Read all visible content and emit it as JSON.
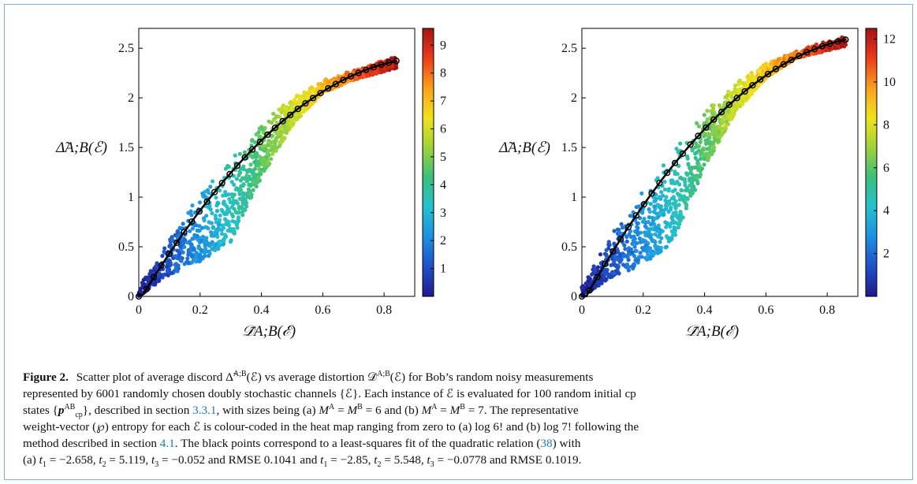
{
  "figure": {
    "label": "Figure 2.",
    "caption_lines": [
      {
        "parts": [
          {
            "t": "Scatter plot of average discord Δ̃",
            "c": ""
          },
          {
            "t": "A;B",
            "c": "sup"
          },
          {
            "t": "(ℰ) vs average distortion 𝒟̃",
            "c": ""
          },
          {
            "t": "A;B",
            "c": "sup"
          },
          {
            "t": "(ℰ) for Bob’s random noisy measurements",
            "c": ""
          }
        ]
      },
      {
        "parts": [
          {
            "t": "represented by 6001 randomly chosen doubly stochastic channels {ℰ}. Each instance of ℰ is evaluated for 100 random initial cp",
            "c": ""
          }
        ]
      },
      {
        "parts": [
          {
            "t": "states {",
            "c": ""
          },
          {
            "t": "p",
            "c": "bi"
          },
          {
            "t": "AB",
            "c": "sup"
          },
          {
            "t": "cp",
            "c": "sub"
          },
          {
            "t": "}, described in section ",
            "c": ""
          },
          {
            "t": "3.3.1",
            "c": "link"
          },
          {
            "t": ", with sizes being (a) ",
            "c": ""
          },
          {
            "t": "M",
            "c": "i"
          },
          {
            "t": "A",
            "c": "sup"
          },
          {
            "t": " = ",
            "c": ""
          },
          {
            "t": "M",
            "c": "i"
          },
          {
            "t": "B",
            "c": "sup"
          },
          {
            "t": " = 6 and (b) ",
            "c": ""
          },
          {
            "t": "M",
            "c": "i"
          },
          {
            "t": "A",
            "c": "sup"
          },
          {
            "t": " = ",
            "c": ""
          },
          {
            "t": "M",
            "c": "i"
          },
          {
            "t": "B",
            "c": "sup"
          },
          {
            "t": " = 7. The representative",
            "c": ""
          }
        ]
      },
      {
        "parts": [
          {
            "t": "weight-vector (℘) entropy for each ℰ is colour-coded in the heat map ranging from zero to (a) log 6! and (b) log 7! following the",
            "c": ""
          }
        ]
      },
      {
        "parts": [
          {
            "t": "method described in section ",
            "c": ""
          },
          {
            "t": "4.1",
            "c": "link"
          },
          {
            "t": ". The black points correspond to a least-squares fit of the quadratic relation (",
            "c": ""
          },
          {
            "t": "38",
            "c": "link"
          },
          {
            "t": ") with",
            "c": ""
          }
        ]
      },
      {
        "parts": [
          {
            "t": "(a) ",
            "c": ""
          },
          {
            "t": "t",
            "c": "i"
          },
          {
            "t": "1",
            "c": "sub"
          },
          {
            "t": " = −2.658, ",
            "c": ""
          },
          {
            "t": "t",
            "c": "i"
          },
          {
            "t": "2",
            "c": "sub"
          },
          {
            "t": " = 5.119, ",
            "c": ""
          },
          {
            "t": "t",
            "c": "i"
          },
          {
            "t": "3",
            "c": "sub"
          },
          {
            "t": " = −0.052 and RMSE 0.1041 and ",
            "c": ""
          },
          {
            "t": "t",
            "c": "i"
          },
          {
            "t": "1",
            "c": "sub"
          },
          {
            "t": " = −2.85, ",
            "c": ""
          },
          {
            "t": "t",
            "c": "i"
          },
          {
            "t": "2",
            "c": "sub"
          },
          {
            "t": " = 5.548, ",
            "c": ""
          },
          {
            "t": "t",
            "c": "i"
          },
          {
            "t": "3",
            "c": "sub"
          },
          {
            "t": " = −0.0778 and RMSE 0.1019.",
            "c": ""
          }
        ]
      }
    ]
  },
  "colors": {
    "frame_border": "#7fb0d8",
    "link": "#1a7cc1",
    "fit_line": "#000000",
    "colormap": [
      "#1f1b8c",
      "#2150c6",
      "#1e8fe0",
      "#25c0cf",
      "#3bbf7e",
      "#9fd23a",
      "#f2e21c",
      "#f7a21b",
      "#ec3c1c",
      "#a01414"
    ]
  },
  "chart_data": [
    {
      "type": "scatter",
      "panel": "a",
      "xlabel": "𝒟̃A;B(ℰ)",
      "ylabel": "Δ̃A;B(ℰ)",
      "xlim": [
        0,
        0.9
      ],
      "ylim": [
        0,
        2.7
      ],
      "xticks": [
        "0",
        "0.2",
        "0.4",
        "0.6",
        "0.8"
      ],
      "yticks": [
        "0",
        "0.5",
        "1",
        "1.5",
        "2",
        "2.5"
      ],
      "colorbar": {
        "min": 0,
        "max": 9.6,
        "ticks": [
          "1",
          "2",
          "3",
          "4",
          "5",
          "6",
          "7",
          "8",
          "9"
        ]
      },
      "n_points": 6001,
      "color_value": "weight-vector entropy",
      "fit": {
        "t1": -2.658,
        "t2": 5.119,
        "t3": -0.052,
        "rmse": 0.1041,
        "x_range": [
          0,
          0.84
        ]
      },
      "scatter_bounds": {
        "upper": [
          [
            0.0,
            0.1
          ],
          [
            0.1,
            0.6
          ],
          [
            0.2,
            1.05
          ],
          [
            0.3,
            1.4
          ],
          [
            0.4,
            1.75
          ],
          [
            0.5,
            2.0
          ],
          [
            0.6,
            2.18
          ],
          [
            0.7,
            2.28
          ],
          [
            0.84,
            2.42
          ]
        ],
        "lower": [
          [
            0.0,
            0.0
          ],
          [
            0.1,
            0.22
          ],
          [
            0.2,
            0.35
          ],
          [
            0.3,
            0.55
          ],
          [
            0.4,
            1.2
          ],
          [
            0.5,
            1.72
          ],
          [
            0.6,
            2.05
          ],
          [
            0.7,
            2.18
          ],
          [
            0.84,
            2.3
          ]
        ]
      }
    },
    {
      "type": "scatter",
      "panel": "b",
      "xlabel": "𝒟̃A;B(ℰ)",
      "ylabel": "Δ̃A;B(ℰ)",
      "xlim": [
        0,
        0.9
      ],
      "ylim": [
        0,
        2.7
      ],
      "xticks": [
        "0",
        "0.2",
        "0.4",
        "0.6",
        "0.8"
      ],
      "yticks": [
        "0",
        "0.5",
        "1",
        "1.5",
        "2",
        "2.5"
      ],
      "colorbar": {
        "min": 0,
        "max": 12.5,
        "ticks": [
          "2",
          "4",
          "6",
          "8",
          "10",
          "12"
        ]
      },
      "n_points": 6001,
      "color_value": "weight-vector entropy",
      "fit": {
        "t1": -2.85,
        "t2": 5.548,
        "t3": -0.0778,
        "rmse": 0.1019,
        "x_range": [
          0,
          0.86
        ]
      },
      "scatter_bounds": {
        "upper": [
          [
            0.0,
            0.1
          ],
          [
            0.1,
            0.65
          ],
          [
            0.2,
            1.1
          ],
          [
            0.3,
            1.5
          ],
          [
            0.4,
            1.85
          ],
          [
            0.5,
            2.15
          ],
          [
            0.6,
            2.35
          ],
          [
            0.7,
            2.48
          ],
          [
            0.86,
            2.63
          ]
        ],
        "lower": [
          [
            0.0,
            0.0
          ],
          [
            0.1,
            0.2
          ],
          [
            0.2,
            0.32
          ],
          [
            0.3,
            0.55
          ],
          [
            0.4,
            1.3
          ],
          [
            0.5,
            1.85
          ],
          [
            0.6,
            2.2
          ],
          [
            0.7,
            2.4
          ],
          [
            0.86,
            2.52
          ]
        ]
      }
    }
  ]
}
